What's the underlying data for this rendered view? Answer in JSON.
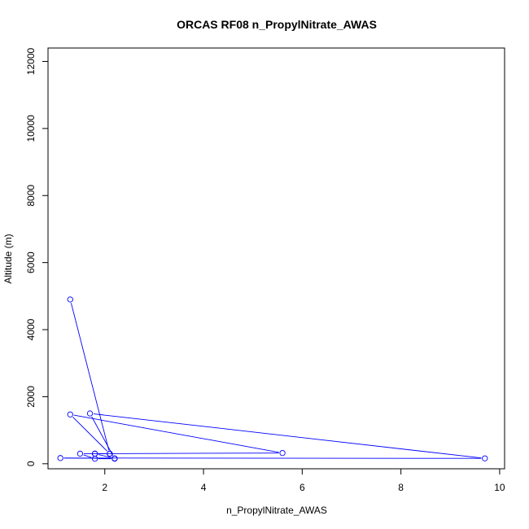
{
  "chart_data": {
    "type": "line",
    "title": "ORCAS RF08 n_PropylNitrate_AWAS",
    "xlabel": "n_PropylNitrate_AWAS",
    "ylabel": "Altitude (m)",
    "xlim": [
      0.85,
      10.1
    ],
    "ylim": [
      -150,
      12400
    ],
    "xticks": [
      2,
      4,
      6,
      8,
      10
    ],
    "yticks": [
      0,
      2000,
      4000,
      6000,
      8000,
      10000,
      12000
    ],
    "grid": false,
    "markers": "open-circle",
    "series": [
      {
        "color": "#0000ff",
        "points": [
          {
            "x": 1.3,
            "y": 4900
          },
          {
            "x": 2.1,
            "y": 300
          },
          {
            "x": 1.5,
            "y": 300
          },
          {
            "x": 1.8,
            "y": 150
          },
          {
            "x": 2.2,
            "y": 150
          },
          {
            "x": 1.7,
            "y": 1500
          },
          {
            "x": 9.7,
            "y": 160
          },
          {
            "x": 1.1,
            "y": 170
          },
          {
            "x": 2.2,
            "y": 160
          },
          {
            "x": 1.8,
            "y": 300
          },
          {
            "x": 5.6,
            "y": 320
          },
          {
            "x": 1.3,
            "y": 1470
          },
          {
            "x": 2.1,
            "y": 300
          },
          {
            "x": 1.8,
            "y": 300
          }
        ]
      }
    ]
  }
}
